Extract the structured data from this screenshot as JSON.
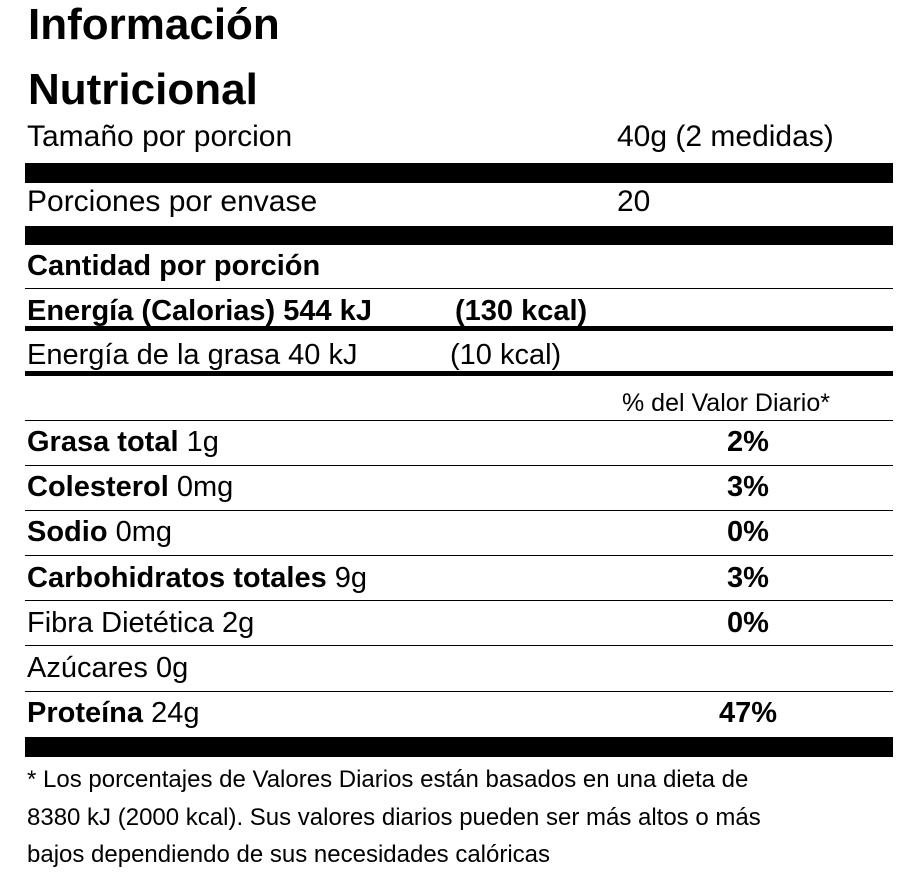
{
  "header": {
    "title": [
      "Información",
      "Nutricional"
    ]
  },
  "serving": [
    {
      "label": "Tamaño por porcion",
      "value": "40g (2 medidas)"
    },
    {
      "label": "Porciones por envase",
      "value": "20"
    }
  ],
  "amount_heading": "Cantidad por porción",
  "energy": {
    "label": "Energía (Calorias) 544 kJ",
    "kcal": "(130 kcal)"
  },
  "fat_energy": {
    "label": "Energía de la grasa 40 kJ",
    "kcal": "(10 kcal)"
  },
  "daily_value_heading": "% del Valor Diario*",
  "rows": [
    {
      "name": "Grasa total",
      "amount": "1g",
      "percent": "2%",
      "bold": true
    },
    {
      "name": "Colesterol",
      "amount": "0mg",
      "percent": "3%",
      "bold": true
    },
    {
      "name": "Sodio",
      "amount": "0mg",
      "percent": "0%",
      "bold": true
    },
    {
      "name": "Carbohidratos totales",
      "amount": "9g",
      "percent": "3%",
      "bold": true
    },
    {
      "name": "Fibra Dietética",
      "amount": "2g",
      "percent": "0%",
      "bold": false
    },
    {
      "name": "Azúcares",
      "amount": "0g",
      "bold": false
    },
    {
      "name": "Proteína",
      "amount": "24g",
      "percent": "47%",
      "bold": true
    }
  ],
  "footnote": [
    "* Los porcentajes de Valores Diarios están basados en una dieta de",
    "8380 kJ (2000 kcal). Sus valores diarios pueden ser más altos o más",
    "bajos dependiendo de sus necesidades calóricas"
  ]
}
